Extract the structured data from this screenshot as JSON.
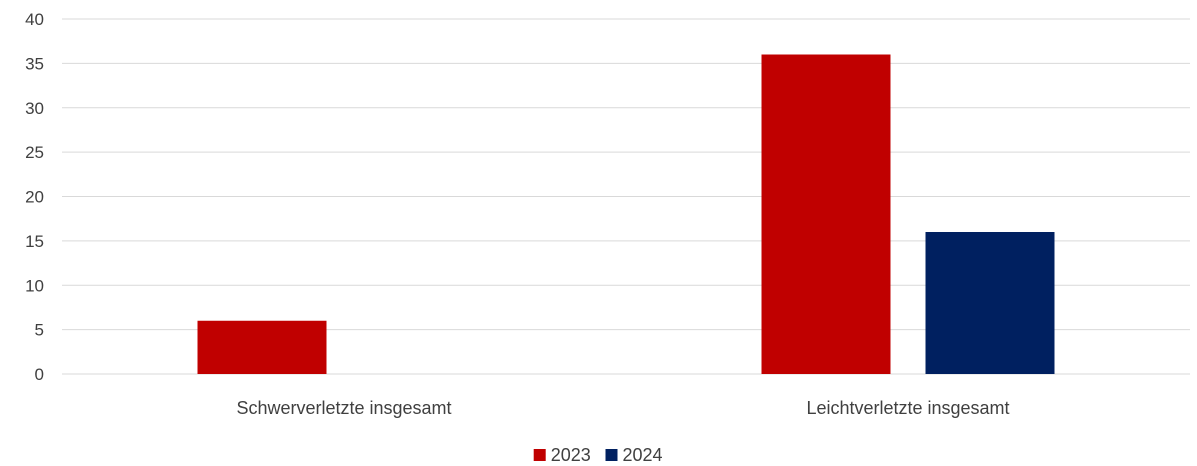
{
  "chart_data": {
    "type": "bar",
    "categories": [
      "Schwerverletzte insgesamt",
      "Leichtverletzte insgesamt"
    ],
    "series": [
      {
        "name": "2023",
        "values": [
          6,
          36
        ],
        "color": "#C00000"
      },
      {
        "name": "2024",
        "values": [
          0,
          16
        ],
        "color": "#002060"
      }
    ],
    "ylim": [
      0,
      40
    ],
    "yticks": [
      0,
      5,
      10,
      15,
      20,
      25,
      30,
      35,
      40
    ],
    "grid": true,
    "legend_position": "bottom-center",
    "gridline_color": "#D9D9D9",
    "text_color": "#404040"
  }
}
